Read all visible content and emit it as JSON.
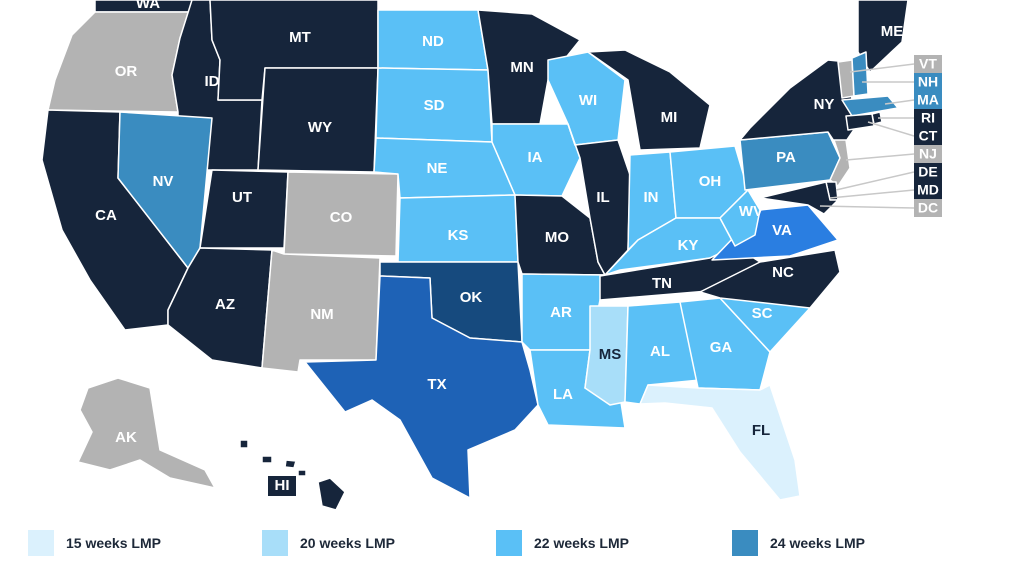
{
  "colors": {
    "w15": "#dbf1fd",
    "w20": "#a8def9",
    "w22": "#5ac0f6",
    "w24": "#3a8cc0",
    "w_dark_blue": "#2a7ee1",
    "w_tx": "#1e62b6",
    "w_ok": "#164a7e",
    "banned": "#16253b",
    "no_limit": "#b3b3b3",
    "label_light": "#ffffff",
    "label_dark": "#16253b"
  },
  "legend": [
    {
      "label": "15 weeks LMP",
      "color_key": "w15"
    },
    {
      "label": "20 weeks LMP",
      "color_key": "w20"
    },
    {
      "label": "22 weeks LMP",
      "color_key": "w22"
    },
    {
      "label": "24 weeks LMP",
      "color_key": "w24"
    }
  ],
  "states": [
    {
      "abbr": "WA",
      "class": "banned"
    },
    {
      "abbr": "OR",
      "class": "no_limit"
    },
    {
      "abbr": "CA",
      "class": "banned"
    },
    {
      "abbr": "ID",
      "class": "banned"
    },
    {
      "abbr": "NV",
      "class": "w24"
    },
    {
      "abbr": "MT",
      "class": "banned"
    },
    {
      "abbr": "WY",
      "class": "banned"
    },
    {
      "abbr": "UT",
      "class": "banned"
    },
    {
      "abbr": "AZ",
      "class": "banned"
    },
    {
      "abbr": "CO",
      "class": "no_limit"
    },
    {
      "abbr": "NM",
      "class": "no_limit"
    },
    {
      "abbr": "ND",
      "class": "w22"
    },
    {
      "abbr": "SD",
      "class": "w22"
    },
    {
      "abbr": "NE",
      "class": "w22"
    },
    {
      "abbr": "KS",
      "class": "w22"
    },
    {
      "abbr": "OK",
      "class": "w_ok"
    },
    {
      "abbr": "TX",
      "class": "w_tx"
    },
    {
      "abbr": "MN",
      "class": "banned"
    },
    {
      "abbr": "IA",
      "class": "w22"
    },
    {
      "abbr": "MO",
      "class": "banned"
    },
    {
      "abbr": "AR",
      "class": "w22"
    },
    {
      "abbr": "LA",
      "class": "w22"
    },
    {
      "abbr": "WI",
      "class": "w22"
    },
    {
      "abbr": "IL",
      "class": "banned"
    },
    {
      "abbr": "MI",
      "class": "banned"
    },
    {
      "abbr": "IN",
      "class": "w22"
    },
    {
      "abbr": "OH",
      "class": "w22"
    },
    {
      "abbr": "KY",
      "class": "w22"
    },
    {
      "abbr": "TN",
      "class": "banned"
    },
    {
      "abbr": "MS",
      "class": "w20"
    },
    {
      "abbr": "AL",
      "class": "w22"
    },
    {
      "abbr": "GA",
      "class": "w22"
    },
    {
      "abbr": "FL",
      "class": "w15"
    },
    {
      "abbr": "SC",
      "class": "w22"
    },
    {
      "abbr": "NC",
      "class": "banned"
    },
    {
      "abbr": "VA",
      "class": "w_dark_blue"
    },
    {
      "abbr": "WV",
      "class": "w22"
    },
    {
      "abbr": "PA",
      "class": "w24"
    },
    {
      "abbr": "NY",
      "class": "banned"
    },
    {
      "abbr": "ME",
      "class": "banned"
    },
    {
      "abbr": "AK",
      "class": "no_limit"
    },
    {
      "abbr": "HI",
      "class": "banned"
    }
  ],
  "small_states": [
    {
      "abbr": "VT",
      "class": "no_limit"
    },
    {
      "abbr": "NH",
      "class": "w24"
    },
    {
      "abbr": "MA",
      "class": "w24"
    },
    {
      "abbr": "RI",
      "class": "banned"
    },
    {
      "abbr": "CT",
      "class": "banned"
    },
    {
      "abbr": "NJ",
      "class": "no_limit"
    },
    {
      "abbr": "DE",
      "class": "banned"
    },
    {
      "abbr": "MD",
      "class": "banned"
    },
    {
      "abbr": "DC",
      "class": "no_limit"
    }
  ]
}
